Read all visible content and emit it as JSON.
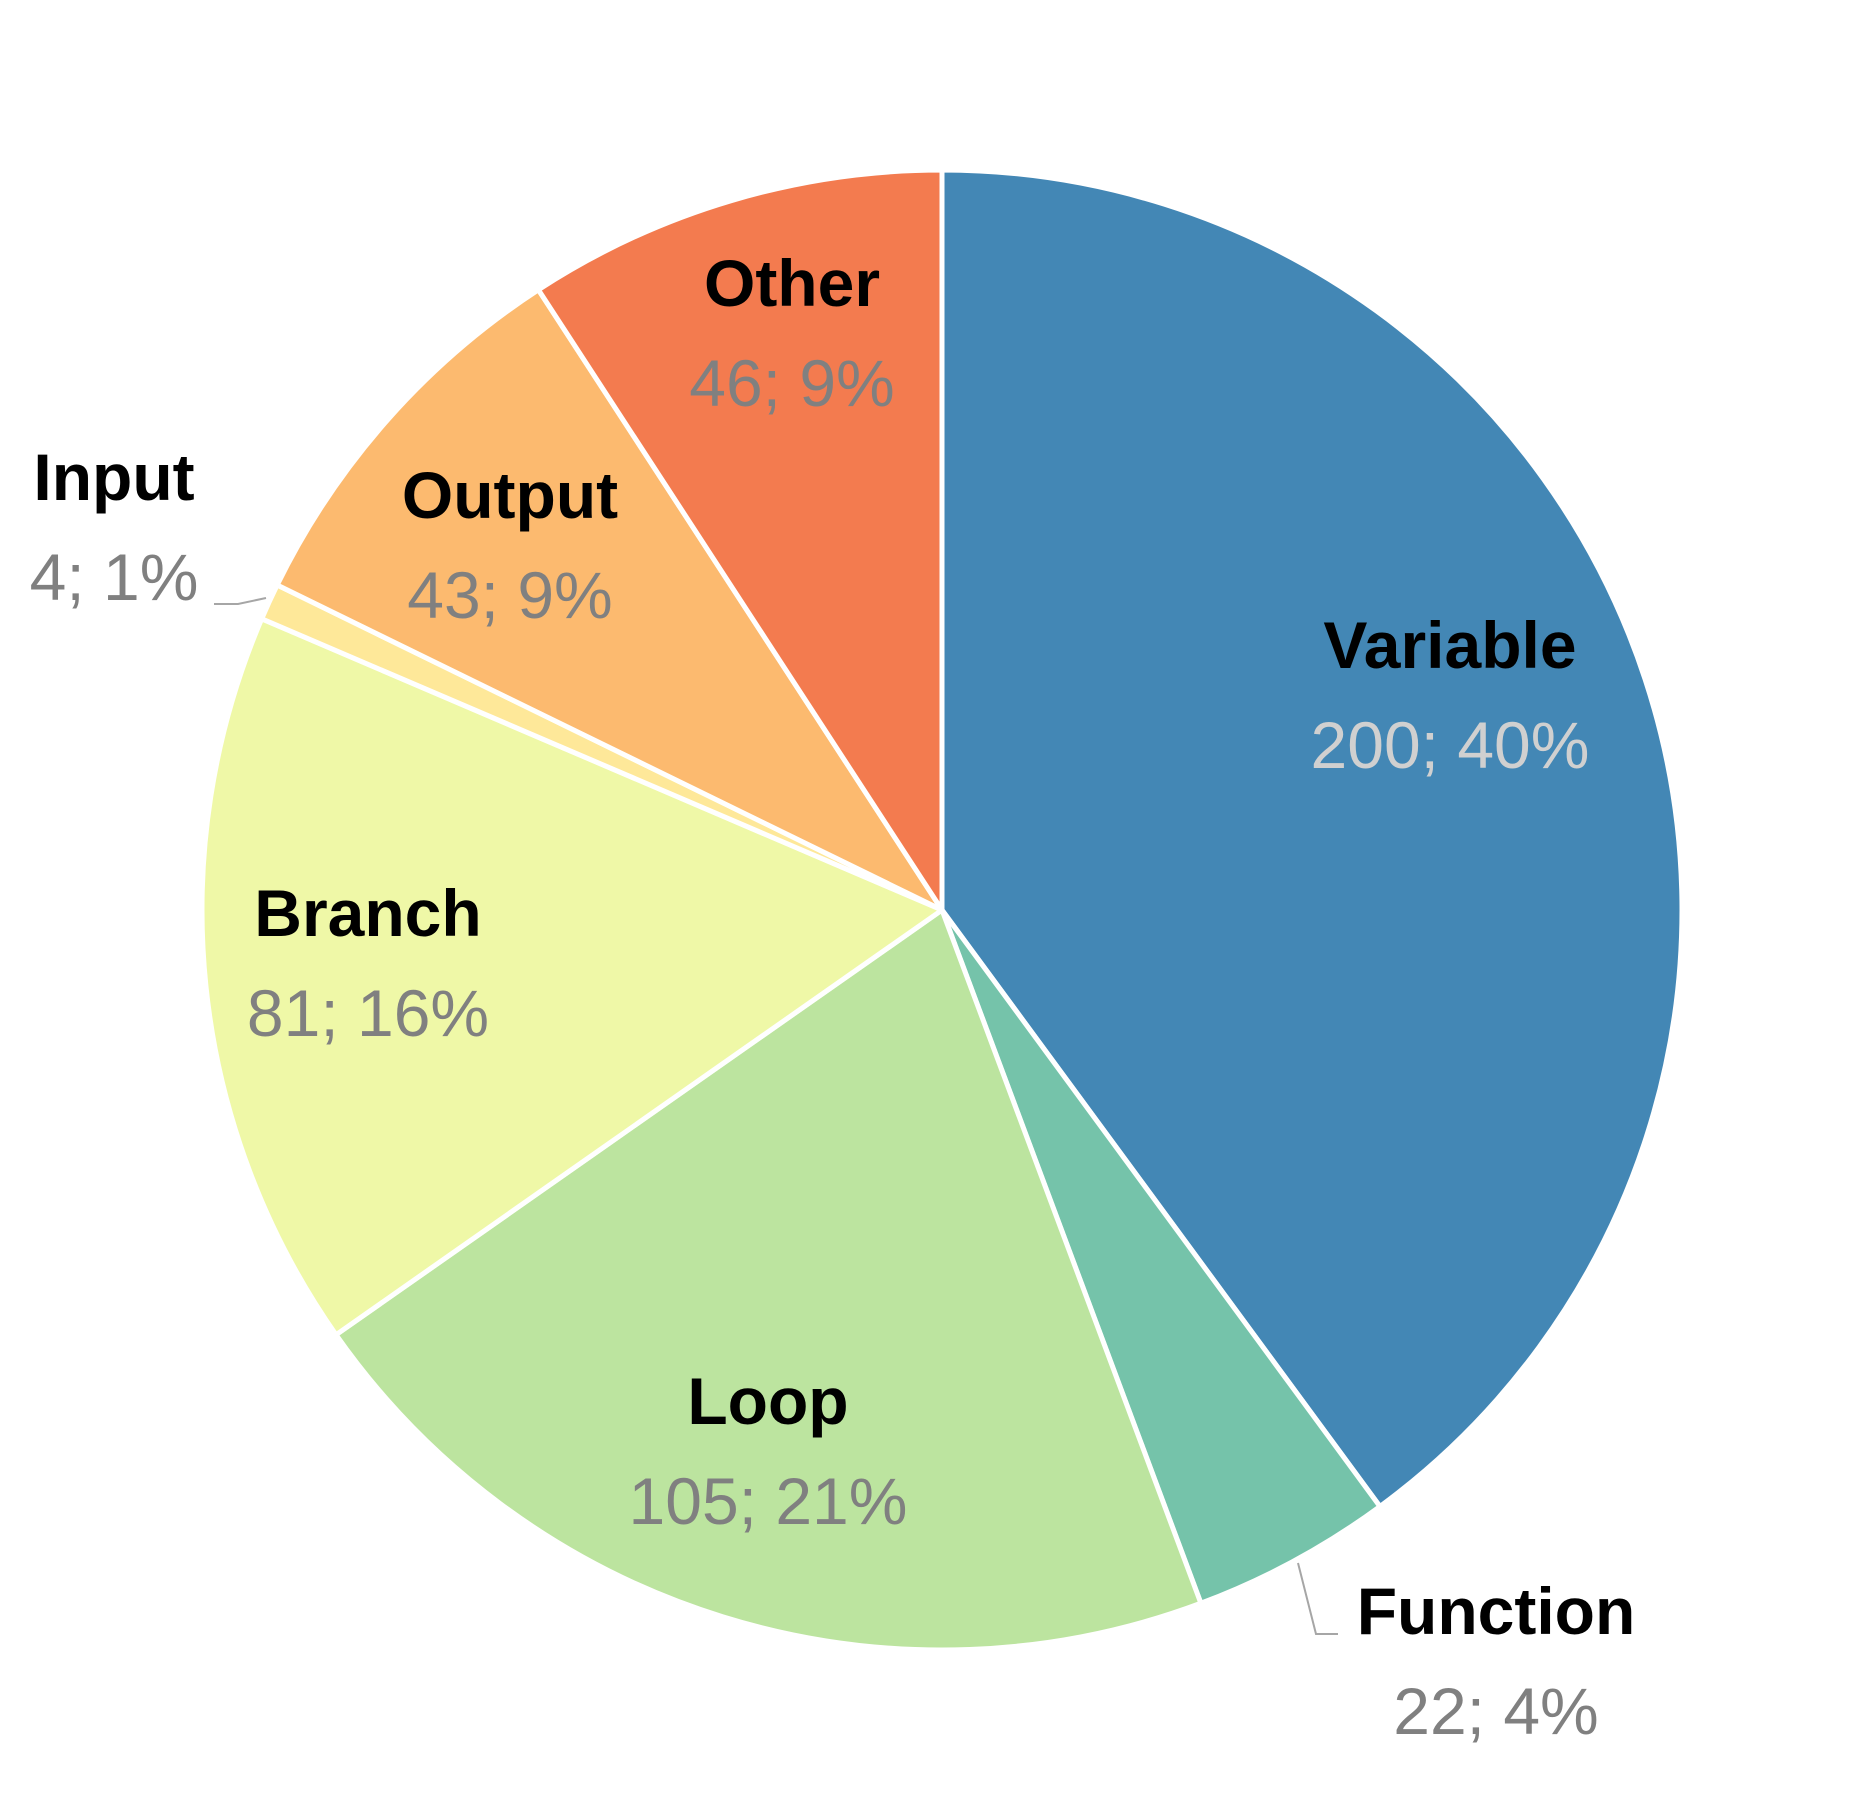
{
  "chart_data": {
    "type": "pie",
    "title": "",
    "slices": [
      {
        "name": "Variable",
        "value": 200,
        "percent": "40%",
        "value_label": "200; 40%",
        "color": "#4387b5",
        "label_color": "#d0d0d0"
      },
      {
        "name": "Function",
        "value": 22,
        "percent": "4%",
        "value_label": "22; 4%",
        "color": "#75c3aa",
        "label_color": "#808080"
      },
      {
        "name": "Loop",
        "value": 105,
        "percent": "21%",
        "value_label": "105; 21%",
        "color": "#bce49f",
        "label_color": "#808080"
      },
      {
        "name": "Branch",
        "value": 81,
        "percent": "16%",
        "value_label": "81; 16%",
        "color": "#eff8a7",
        "label_color": "#808080"
      },
      {
        "name": "Input",
        "value": 4,
        "percent": "1%",
        "value_label": "4; 1%",
        "color": "#fee899",
        "label_color": "#808080"
      },
      {
        "name": "Output",
        "value": 43,
        "percent": "9%",
        "value_label": "43; 9%",
        "color": "#fcba6f",
        "label_color": "#808080"
      },
      {
        "name": "Other",
        "value": 46,
        "percent": "9%",
        "value_label": "46; 9%",
        "color": "#f37b4f",
        "label_color": "#808080"
      }
    ],
    "start_angle": "12 o'clock",
    "direction": "clockwise",
    "legend": "none",
    "label_style": "name; value; percent"
  }
}
